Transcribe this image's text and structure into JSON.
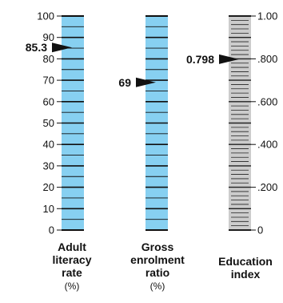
{
  "chart_data": {
    "type": "gauge",
    "gauges": [
      {
        "key": "adult_literacy",
        "label_lines": [
          "Adult",
          "literacy",
          "rate"
        ],
        "unit": "(%)",
        "value": 85.3,
        "value_label": "85.3",
        "range": [
          0,
          100
        ],
        "tick_labels": [
          "0",
          "10",
          "20",
          "30",
          "40",
          "50",
          "60",
          "70",
          "80",
          "90",
          "100"
        ],
        "fill_color": "#87d0f1"
      },
      {
        "key": "gross_enrolment",
        "label_lines": [
          "Gross",
          "enrolment",
          "ratio"
        ],
        "unit": "(%)",
        "value": 69,
        "value_label": "69",
        "range": [
          0,
          100
        ],
        "tick_labels": [],
        "fill_color": "#87d0f1"
      },
      {
        "key": "education_index",
        "label_lines": [
          "Education",
          "index"
        ],
        "unit": "",
        "value": 0.798,
        "value_label": "0.798",
        "range": [
          0,
          1
        ],
        "tick_labels": [
          "0",
          ".200",
          ".400",
          ".600",
          ".800",
          "1.00"
        ],
        "fill_color": "#cccccc"
      }
    ]
  }
}
